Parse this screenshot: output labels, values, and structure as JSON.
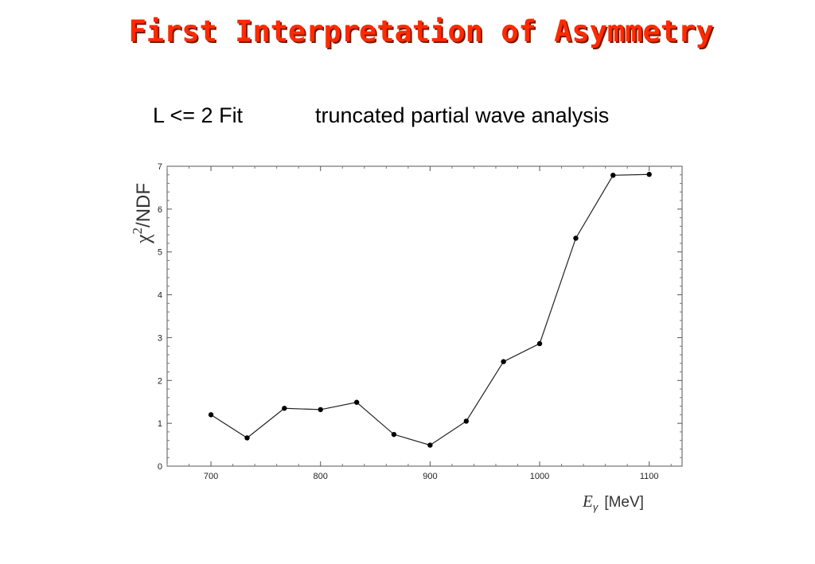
{
  "slide": {
    "title": "First Interpretation of Asymmetry",
    "subtitle_left": "L <= 2 Fit",
    "subtitle_right": "truncated partial wave analysis",
    "title_color": "#ff2a00"
  },
  "chart_data": {
    "type": "line",
    "title": "",
    "xlabel_symbol": "E",
    "xlabel_subscript": "γ",
    "xlabel_unit": "[MeV]",
    "ylabel_symbol": "χ",
    "ylabel_superscript": "2",
    "ylabel_rest": "/NDF",
    "xlim": [
      660,
      1130
    ],
    "ylim": [
      0,
      7
    ],
    "xticks": [
      700,
      800,
      900,
      1000,
      1100
    ],
    "yticks": [
      0,
      1,
      2,
      3,
      4,
      5,
      6,
      7
    ],
    "grid": false,
    "series": [
      {
        "x": [
          700,
          733,
          767,
          800,
          833,
          867,
          900,
          933,
          967,
          1000,
          1033,
          1067,
          1100
        ],
        "y": [
          1.2,
          0.66,
          1.35,
          1.32,
          1.49,
          0.74,
          0.49,
          1.05,
          2.44,
          2.86,
          5.32,
          6.79,
          6.81
        ]
      }
    ]
  }
}
